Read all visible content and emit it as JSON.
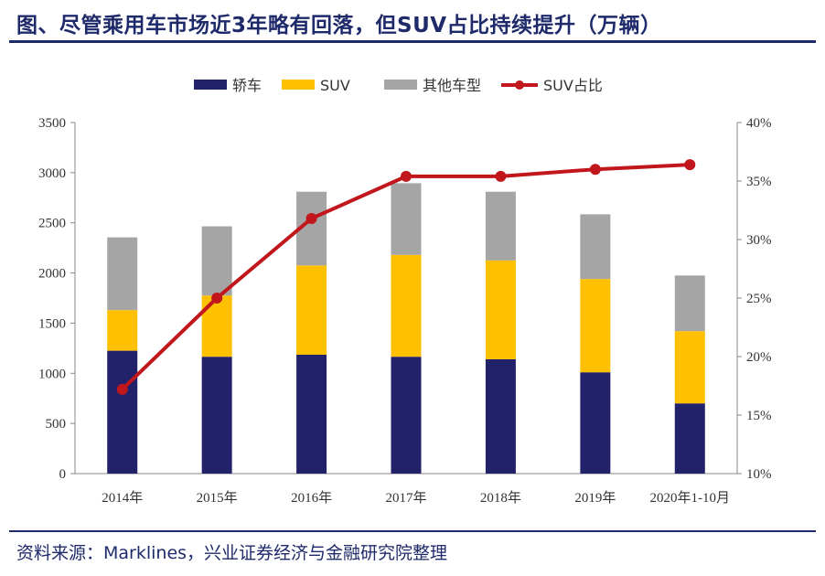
{
  "header": {
    "title": "图、尽管乘用车市场近3年略有回落，但SUV占比持续提升（万辆）"
  },
  "footer": {
    "source": "资料来源：Marklines，兴业证券经济与金融研究院整理"
  },
  "chart_data": {
    "type": "bar",
    "stacked": true,
    "categories": [
      "2014年",
      "2015年",
      "2016年",
      "2017年",
      "2018年",
      "2019年",
      "2020年1-10月"
    ],
    "series": [
      {
        "name": "轿车",
        "values": [
          1225,
          1165,
          1185,
          1165,
          1140,
          1010,
          700
        ],
        "color": "#22226b"
      },
      {
        "name": "SUV",
        "values": [
          405,
          610,
          890,
          1015,
          985,
          930,
          720
        ],
        "color": "#ffc000"
      },
      {
        "name": "其他车型",
        "values": [
          725,
          690,
          735,
          715,
          685,
          645,
          555
        ],
        "color": "#a5a5a5"
      }
    ],
    "line_series": {
      "name": "SUV占比",
      "values": [
        17.2,
        25.0,
        31.8,
        35.4,
        35.4,
        36.0,
        36.4
      ],
      "color": "#c0161c",
      "axis": "right"
    },
    "ylim": [
      0,
      3500
    ],
    "yticks": [
      0,
      500,
      1000,
      1500,
      2000,
      2500,
      3000,
      3500
    ],
    "y2lim": [
      10,
      40
    ],
    "y2ticks": [
      "10%",
      "15%",
      "20%",
      "25%",
      "30%",
      "35%",
      "40%"
    ],
    "legend": "top",
    "grid": false
  }
}
